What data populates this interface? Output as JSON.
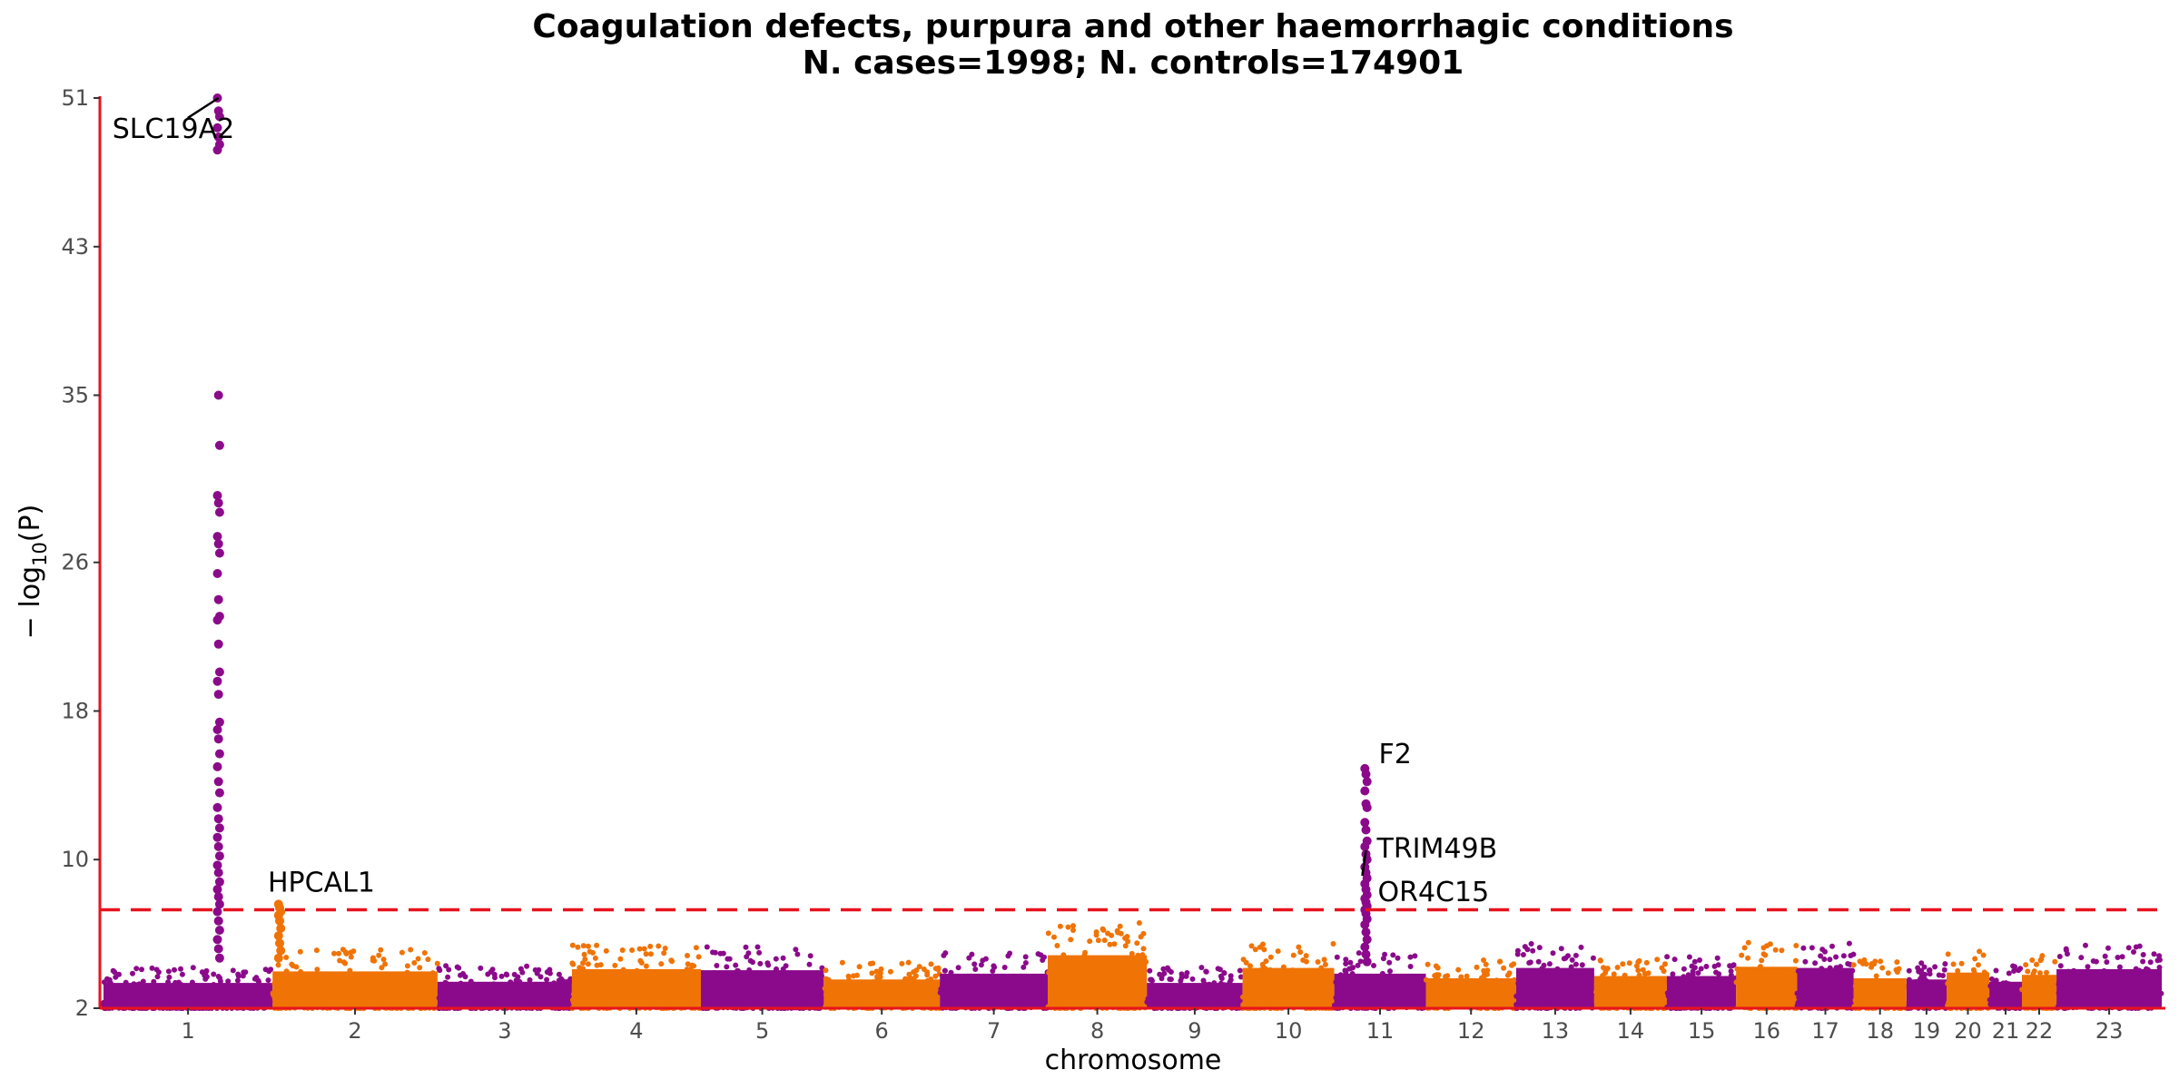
{
  "chart_data": {
    "type": "scatter",
    "subtype": "manhattan",
    "title_line1": "Coagulation defects, purpura and other haemorrhagic conditions",
    "title_line2": "N. cases=1998; N. controls=174901",
    "xlabel": "chromosome",
    "ylabel": "− log10(P)",
    "ylim": [
      2,
      51
    ],
    "y_ticks": [
      2,
      10,
      18,
      26,
      35,
      43,
      51
    ],
    "significance_threshold": 7.3,
    "grid": false,
    "colors": {
      "odd": "#8b0a8b",
      "even": "#f07306",
      "axis": "#e8131d",
      "threshold": "#e8131d"
    },
    "chromosomes": [
      {
        "label": "1",
        "length": 249,
        "max_bg": 4.2
      },
      {
        "label": "2",
        "length": 243,
        "max_bg": 5.2
      },
      {
        "label": "3",
        "length": 198,
        "max_bg": 4.3
      },
      {
        "label": "4",
        "length": 190,
        "max_bg": 5.4
      },
      {
        "label": "5",
        "length": 181,
        "max_bg": 5.3
      },
      {
        "label": "6",
        "length": 171,
        "max_bg": 4.5
      },
      {
        "label": "7",
        "length": 159,
        "max_bg": 5.0
      },
      {
        "label": "8",
        "length": 146,
        "max_bg": 6.6
      },
      {
        "label": "9",
        "length": 141,
        "max_bg": 4.2
      },
      {
        "label": "10",
        "length": 135,
        "max_bg": 5.5
      },
      {
        "label": "11",
        "length": 135,
        "max_bg": 5.0
      },
      {
        "label": "12",
        "length": 133,
        "max_bg": 4.6
      },
      {
        "label": "13",
        "length": 115,
        "max_bg": 5.5
      },
      {
        "label": "14",
        "length": 107,
        "max_bg": 4.8
      },
      {
        "label": "15",
        "length": 102,
        "max_bg": 4.8
      },
      {
        "label": "16",
        "length": 90,
        "max_bg": 5.6
      },
      {
        "label": "17",
        "length": 83,
        "max_bg": 5.5
      },
      {
        "label": "18",
        "length": 78,
        "max_bg": 4.6
      },
      {
        "label": "19",
        "length": 59,
        "max_bg": 4.5
      },
      {
        "label": "20",
        "length": 63,
        "max_bg": 5.1
      },
      {
        "label": "21",
        "length": 48,
        "max_bg": 4.3
      },
      {
        "label": "22",
        "length": 51,
        "max_bg": 4.9
      },
      {
        "label": "23",
        "length": 155,
        "max_bg": 5.4
      }
    ],
    "peaks": [
      {
        "chromosome": "1",
        "position_mb": 169.4,
        "values": [
          51.0,
          50.3,
          50.0,
          49.4,
          48.9,
          48.5,
          48.2,
          35.0,
          32.3,
          29.6,
          29.2,
          28.7,
          27.4,
          27.0,
          26.5,
          25.4,
          24.0,
          23.1,
          22.9,
          21.6,
          20.1,
          19.6,
          18.9,
          17.4,
          17.0,
          16.5,
          15.7,
          15.0,
          14.2,
          13.6,
          12.8,
          12.2,
          11.7,
          11.2,
          10.7,
          10.2,
          9.7,
          9.3,
          8.8,
          8.4,
          8.0,
          7.6,
          7.2,
          6.7,
          6.2,
          5.7,
          5.2,
          4.7
        ]
      },
      {
        "chromosome": "2",
        "position_mb": 10.4,
        "values": [
          7.6,
          7.4,
          7.2,
          7.0,
          6.7,
          6.3,
          5.9,
          5.5,
          5.1,
          4.7
        ]
      },
      {
        "chromosome": "11",
        "position_mb": 46.7,
        "values": [
          14.9,
          14.6,
          14.2,
          13.7,
          13.0,
          12.8,
          12.0,
          11.6,
          11.0,
          10.7,
          10.3,
          10.0,
          9.6,
          9.3,
          9.0,
          8.7,
          8.4,
          8.1,
          7.9,
          7.7,
          7.5,
          7.3,
          7.1,
          6.8,
          6.5,
          6.1,
          5.7,
          5.3,
          4.9,
          4.5
        ]
      }
    ],
    "annotations": [
      {
        "label": "SLC19A2",
        "chromosome": "1",
        "position_mb": 169.4,
        "y": 51.0
      },
      {
        "label": "HPCAL1",
        "chromosome": "2",
        "position_mb": 10.4,
        "y": 7.6
      },
      {
        "label": "F2",
        "chromosome": "11",
        "position_mb": 46.7,
        "y": 14.9
      },
      {
        "label": "TRIM49B",
        "chromosome": "11",
        "position_mb": 46.7,
        "y": 10.5
      },
      {
        "label": "OR4C15",
        "chromosome": "11",
        "position_mb": 46.7,
        "y": 8.0
      }
    ]
  }
}
